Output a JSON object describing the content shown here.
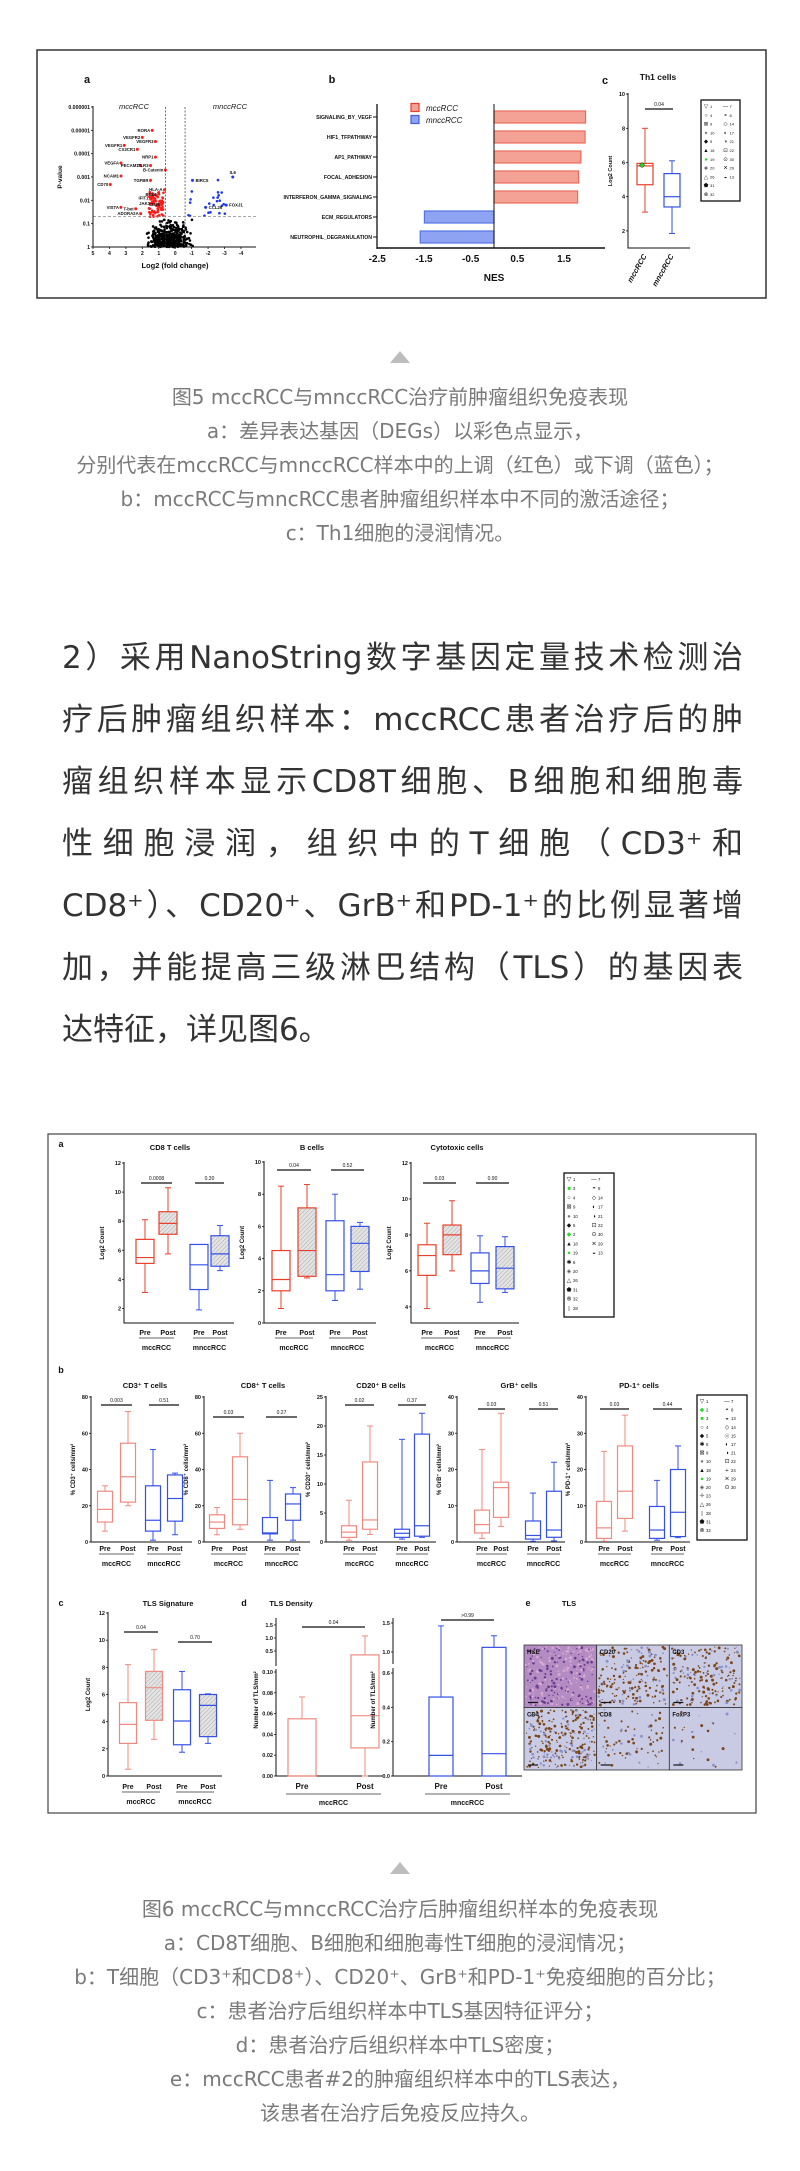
{
  "article": {
    "paragraph_lines": [
      "2）采用NanoString数字基因定量技术检测治",
      "疗后肿瘤组织样本：mccRCC患者治疗后的肿",
      "瘤组织样本显示CD8T细胞、B细胞和细胞毒",
      "性细胞浸润，组织中的T细胞（CD3⁺和",
      "CD8⁺）、CD20⁺、GrB⁺和PD-1⁺的比例显著增",
      "加，并能提高三级淋巴结构（TLS）的基因表",
      "达特征，详见图6。"
    ]
  },
  "colors": {
    "red": "#e8402a",
    "red_light": "#f08a80",
    "blue": "#3450e6",
    "green": "#22dd22",
    "up": "#ff1a1a",
    "down": "#1f35f0",
    "caption": "#7a7a7a"
  },
  "markers": {
    "1": "triangle-down-open",
    "2": "diamond-green",
    "3": "square-green",
    "4": "circle-open",
    "5": "diamond-black",
    "6": "star",
    "7": "dash",
    "8": "circle-top-half",
    "9": "square-x",
    "10": "circle-gray",
    "13": "circle-bottom-half",
    "14": "diamond-open",
    "15": "circle-double",
    "17": "circle-left-half",
    "18": "triangle-black",
    "19": "circle-green",
    "20": "diamond-gray",
    "21": "circle-right-half",
    "22": "square-dot",
    "23": "cross",
    "24": "plus",
    "26": "triangle-open",
    "28": "bar",
    "29": "x",
    "30": "circle-dot",
    "31": "pentagon",
    "32": "circle-x"
  },
  "figure5": {
    "caption": [
      "图5   mccRCC与mnccRCC治疗前肿瘤组织免疫表现",
      "a：差异表达基因（DEGs）以彩色点显示，",
      "分别代表在mccRCC与mnccRCC样本中的上调（红色）或下调（蓝色）；",
      "b：mccRCC与mncRCC患者肿瘤组织样本中不同的激活途径；",
      "c：Th1细胞的浸润情况。"
    ],
    "panel_a": {
      "label": "a",
      "group_left": "mccRCC",
      "group_right": "mnccRCC",
      "ylabel": "P-value",
      "xlabel": "Log2 (fold change)",
      "xticks": [
        "5",
        "4",
        "3",
        "2",
        "1",
        "0",
        "-1",
        "-2",
        "-3",
        "-4"
      ],
      "yticks": [
        "0.000001",
        "0.00001",
        "0.0001",
        "0.001",
        "0.01",
        "0.1",
        "1"
      ],
      "fold_change_threshold": 0.6,
      "p_threshold": 0.05,
      "genes": [
        {
          "name": "RORA",
          "log2fc": 1.4,
          "p": 1e-05,
          "direction": "up"
        },
        {
          "name": "VEGFR2",
          "log2fc": 2.0,
          "p": 2e-05,
          "direction": "up"
        },
        {
          "name": "VEGFR1",
          "log2fc": 3.1,
          "p": 4.4e-05,
          "direction": "up"
        },
        {
          "name": "VEGFR3",
          "log2fc": 1.2,
          "p": 3e-05,
          "direction": "up"
        },
        {
          "name": "CX3CR1",
          "log2fc": 2.3,
          "p": 6.5e-05,
          "direction": "up"
        },
        {
          "name": "NRP1",
          "log2fc": 1.2,
          "p": 0.00014,
          "direction": "up"
        },
        {
          "name": "VEGFA",
          "log2fc": 3.3,
          "p": 0.00025,
          "direction": "up"
        },
        {
          "name": "PECAM1",
          "log2fc": 2.1,
          "p": 0.00032,
          "direction": "up"
        },
        {
          "name": "TLR3",
          "log2fc": 1.5,
          "p": 0.00032,
          "direction": "up"
        },
        {
          "name": "B-Catenin",
          "log2fc": 0.6,
          "p": 0.0005,
          "direction": "up"
        },
        {
          "name": "NCAM1",
          "log2fc": 3.3,
          "p": 0.0009,
          "direction": "up"
        },
        {
          "name": "CD70",
          "log2fc": 3.95,
          "p": 0.0021,
          "direction": "up"
        },
        {
          "name": "TGFBR",
          "log2fc": 1.5,
          "p": 0.0014,
          "direction": "up"
        },
        {
          "name": "HLA-A",
          "log2fc": 0.65,
          "p": 0.0035,
          "direction": "up"
        },
        {
          "name": "BCL6",
          "log2fc": 1.0,
          "p": 0.0055,
          "direction": "up"
        },
        {
          "name": "IFIT1",
          "log2fc": 1.5,
          "p": 0.008,
          "direction": "up"
        },
        {
          "name": "VISTA",
          "log2fc": 3.3,
          "p": 0.02,
          "direction": "up"
        },
        {
          "name": "T-bet",
          "log2fc": 2.4,
          "p": 0.023,
          "direction": "up"
        },
        {
          "name": "JAK1",
          "log2fc": 1.4,
          "p": 0.014,
          "direction": "up"
        },
        {
          "name": "CD69",
          "log2fc": 0.8,
          "p": 0.015,
          "direction": "up"
        },
        {
          "name": "ADORA2A",
          "log2fc": 2.1,
          "p": 0.037,
          "direction": "up"
        },
        {
          "name": "IL6",
          "log2fc": -3.5,
          "p": 0.001,
          "direction": "down"
        },
        {
          "name": "BIRC5",
          "log2fc": -1.05,
          "p": 0.0014,
          "direction": "down"
        },
        {
          "name": "FOXJ1",
          "log2fc": -3.1,
          "p": 0.016,
          "direction": "down"
        },
        {
          "name": "CCL26",
          "log2fc": -1.85,
          "p": 0.02,
          "direction": "down"
        }
      ]
    },
    "panel_b": {
      "label": "b",
      "xlabel": "NES",
      "xticks": [
        "-2.5",
        "-1.5",
        "-0.5",
        "0.5",
        "1.5"
      ],
      "xlim": [
        -2.5,
        2.4
      ],
      "legend": [
        {
          "name": "mccRCC",
          "color": "red"
        },
        {
          "name": "mnccRCC",
          "color": "blue"
        }
      ],
      "pathways": [
        {
          "name": "SIGNALING_BY_VEGF",
          "nes": 1.96,
          "group": "mccRCC"
        },
        {
          "name": "HIF1_TFPATHWAY",
          "nes": 1.95,
          "group": "mccRCC"
        },
        {
          "name": "AP1_PATHWAY",
          "nes": 1.86,
          "group": "mccRCC"
        },
        {
          "name": "FOCAL_ADHESION",
          "nes": 1.81,
          "group": "mccRCC"
        },
        {
          "name": "INTERFERON_GAMMA_SIGNALING",
          "nes": 1.79,
          "group": "mccRCC"
        },
        {
          "name": "ECM_REGULATORS",
          "nes": -1.49,
          "group": "mnccRCC"
        },
        {
          "name": "NEUTROPHIL_DEGRANULATION",
          "nes": -1.58,
          "group": "mnccRCC"
        }
      ]
    },
    "panel_c": {
      "label": "c",
      "title": "Th1 cells",
      "ylabel": "Log2 Count",
      "ylim": [
        1,
        10
      ],
      "yticks": [
        "2",
        "4",
        "6",
        "8",
        "10"
      ],
      "boxes": [
        {
          "name": "mccRCC",
          "stats": [
            3.1,
            4.7,
            5.8,
            5.95,
            8.0
          ],
          "color": "red"
        },
        {
          "name": "mnccRCC",
          "stats": [
            1.85,
            3.4,
            4.0,
            5.35,
            6.1
          ],
          "color": "blue"
        }
      ],
      "p_value": "0.04",
      "legend": [
        [
          "1",
          "4",
          "9",
          "10",
          "5",
          "18",
          "19",
          "20",
          "26",
          "31",
          "32"
        ],
        [
          "7",
          "8",
          "14",
          "17",
          "21",
          "22",
          "30",
          "29",
          "13"
        ]
      ]
    }
  },
  "figure6": {
    "caption": [
      "图6  mccRCC与mnccRCC治疗后肿瘤组织样本的免疫表现",
      "a：CD8T细胞、B细胞和细胞毒性T细胞的浸润情况；",
      "b：T细胞（CD3⁺和CD8⁺）、CD20⁺、GrB⁺和PD-1⁺免疫细胞的百分比；",
      "c：患者治疗后组织样本中TLS基因特征评分；",
      "d：患者治疗后组织样本中TLS密度；",
      "e：mccRCC患者#2的肿瘤组织样本中的TLS表达，",
      "该患者在治疗后免疫反应持久。"
    ],
    "time_labels": [
      "Pre",
      "Post"
    ],
    "groups": [
      "mccRCC",
      "mnccRCC"
    ],
    "panel_a": {
      "label": "a",
      "legend": [
        [
          "1",
          "3",
          "4",
          "9",
          "10",
          "5",
          "2",
          "18",
          "19",
          "6",
          "20",
          "26",
          "31",
          "32",
          "28"
        ],
        [
          "7",
          "8",
          "14",
          "17",
          "21",
          "22",
          "30",
          "29",
          "13"
        ]
      ],
      "plots": [
        {
          "title": "CD8 T cells",
          "ylabel": "Log2 Count",
          "ylim": [
            1,
            12
          ],
          "yticks": [
            "2",
            "4",
            "6",
            "8",
            "10",
            "12"
          ],
          "boxes": [
            [
              3.1,
              5.1,
              5.5,
              6.75,
              8.1
            ],
            [
              5.75,
              7.1,
              7.85,
              8.65,
              10.3
            ],
            [
              1.9,
              3.3,
              5.0,
              6.4,
              6.4
            ],
            [
              4.6,
              4.9,
              5.75,
              7.0,
              7.7
            ]
          ],
          "p_values": [
            "0.0008",
            "0.30"
          ]
        },
        {
          "title": "B cells",
          "ylabel": "Log2 Count",
          "ylim": [
            0,
            10
          ],
          "yticks": [
            "0",
            "2",
            "4",
            "6",
            "8",
            "10"
          ],
          "boxes": [
            [
              0.9,
              2.0,
              2.7,
              4.5,
              8.5
            ],
            [
              2.8,
              2.9,
              4.5,
              7.15,
              8.6
            ],
            [
              1.4,
              2.0,
              3.0,
              6.35,
              8.0
            ],
            [
              2.1,
              3.2,
              4.95,
              6.0,
              6.25
            ]
          ],
          "p_values": [
            "0.04",
            "0.52"
          ]
        },
        {
          "title": "Cytotoxic cells",
          "ylabel": "Log2 Count",
          "ylim": [
            3.1,
            12
          ],
          "yticks": [
            "4",
            "6",
            "8",
            "10",
            "12"
          ],
          "boxes": [
            [
              3.9,
              5.75,
              6.85,
              7.45,
              8.65
            ],
            [
              6.0,
              6.9,
              8.0,
              8.55,
              9.9
            ],
            [
              4.25,
              5.3,
              6.0,
              7.0,
              7.95
            ],
            [
              4.8,
              5.0,
              6.15,
              7.35,
              7.9
            ]
          ],
          "p_values": [
            "0.03",
            "0.90"
          ]
        }
      ]
    },
    "panel_b": {
      "label": "b",
      "legend": [
        [
          "1",
          "2",
          "3",
          "4",
          "5",
          "6",
          "9",
          "10",
          "18",
          "19",
          "20",
          "23",
          "26",
          "28",
          "31",
          "32"
        ],
        [
          "7",
          "8",
          "13",
          "14",
          "15",
          "17",
          "21",
          "22",
          "24",
          "29",
          "30"
        ]
      ],
      "plots": [
        {
          "title": "CD3⁺ T cells",
          "ylabel": "% CD3⁺ cells/mm²",
          "ylim": [
            0,
            80
          ],
          "yticks": [
            "0",
            "20",
            "40",
            "60",
            "80"
          ],
          "boxes": [
            [
              6,
              11,
              18,
              28,
              31
            ],
            [
              20,
              22,
              36,
              54.5,
              72
            ],
            [
              1,
              6,
              12,
              31,
              51
            ],
            [
              4,
              11.5,
              24,
              37,
              38
            ]
          ],
          "p_values": [
            "0.003",
            "0.51"
          ]
        },
        {
          "title": "CD8⁺ T cells",
          "ylabel": "% CD8⁺ cells/mm²",
          "ylim": [
            0,
            80
          ],
          "yticks": [
            "0",
            "20",
            "40",
            "60",
            "80"
          ],
          "boxes": [
            [
              4,
              7.5,
              11,
              15,
              19
            ],
            [
              7,
              9.5,
              23.5,
              47,
              60
            ],
            [
              1,
              4.5,
              5,
              13.5,
              34
            ],
            [
              1,
              12,
              21,
              26.5,
              30
            ]
          ],
          "p_values": [
            "0.03",
            "0.27"
          ]
        },
        {
          "title": "CD20⁺ B cells",
          "ylabel": "% CD20⁺ cells/mm²",
          "ylim": [
            0,
            25
          ],
          "yticks": [
            "0",
            "5",
            "10",
            "15",
            "20",
            "25"
          ],
          "boxes": [
            [
              0.3,
              0.8,
              1.7,
              2.8,
              7.2
            ],
            [
              1.3,
              2.2,
              3.8,
              13.8,
              20
            ],
            [
              0.5,
              0.8,
              1.5,
              2.2,
              17.7
            ],
            [
              0.8,
              1.0,
              2.8,
              18.6,
              22.2
            ]
          ],
          "p_values": [
            "0.02",
            "0.37"
          ]
        },
        {
          "title": "GrB⁺ cells",
          "ylabel": "% GrB⁺ cells/mm²",
          "ylim": [
            0,
            40
          ],
          "yticks": [
            "0",
            "10",
            "20",
            "30",
            "40"
          ],
          "boxes": [
            [
              1,
              2.5,
              4.8,
              8.8,
              25.5
            ],
            [
              4.3,
              6.8,
              15,
              16.5,
              35.5
            ],
            [
              0.2,
              0.8,
              1.8,
              5.8,
              13.5
            ],
            [
              0.3,
              1.3,
              3.3,
              14,
              22
            ]
          ],
          "p_values": [
            "0.03",
            "0.51"
          ]
        },
        {
          "title": "PD-1⁺ cells",
          "ylabel": "% PD-1⁺ cells/mm²",
          "ylim": [
            0,
            40
          ],
          "yticks": [
            "0",
            "10",
            "20",
            "30",
            "40"
          ],
          "boxes": [
            [
              0.2,
              1,
              3.9,
              11.2,
              25
            ],
            [
              3,
              6.5,
              14,
              26.5,
              35
            ],
            [
              0.5,
              1,
              3.3,
              9.8,
              17
            ],
            [
              1.2,
              1.5,
              8.2,
              20,
              26.5
            ]
          ],
          "p_values": [
            "0.03",
            "0.44"
          ]
        }
      ]
    },
    "panel_c": {
      "label": "c",
      "title": "TLS Signature",
      "ylabel": "Log2 Count",
      "ylim": [
        0,
        12
      ],
      "yticks": [
        "0",
        "2",
        "4",
        "6",
        "8",
        "10",
        "12"
      ],
      "boxes": [
        [
          0.5,
          2.4,
          3.8,
          5.4,
          8.2
        ],
        [
          2.7,
          4.1,
          6.5,
          7.7,
          9.3
        ],
        [
          1.75,
          2.3,
          4.05,
          6.35,
          7.7
        ],
        [
          2.4,
          2.9,
          5.2,
          6.0,
          6.05
        ]
      ],
      "p_values": [
        "0.04",
        "0.70"
      ]
    },
    "panel_d": {
      "label": "d",
      "title": "TLS Density",
      "ylabel": "Number of TLS/mm²",
      "plots": [
        {
          "group": "mccRCC",
          "yticks_lower": [
            "0.00",
            "0.02",
            "0.04",
            "0.06",
            "0.08",
            "0.10"
          ],
          "yticks_upper": [
            "0.5",
            "1.0",
            "1.5"
          ],
          "boxes": [
            [
              0,
              0,
              0,
              0.055,
              0.076
            ],
            [
              0,
              0.027,
              0.058,
              0.35,
              1.08
            ]
          ],
          "p_value": "0.04",
          "color": "red"
        },
        {
          "group": "mnccRCC",
          "yticks_lower": [
            "0.0",
            "0.2",
            "0.4",
            "0.6"
          ],
          "yticks_upper": [
            "1.0",
            "1.5"
          ],
          "boxes": [
            [
              0,
              0,
              0.12,
              0.46,
              1.45
            ],
            [
              0,
              0,
              0.13,
              1.08,
              1.28
            ]
          ],
          "p_value": ">0.99",
          "color": "blue"
        }
      ]
    },
    "panel_e": {
      "label": "e",
      "title": "TLS",
      "tiles": [
        {
          "name": "H&E",
          "stain": "he"
        },
        {
          "name": "CD20",
          "stain": "dab-high"
        },
        {
          "name": "CD3",
          "stain": "dab-high"
        },
        {
          "name": "CD4",
          "stain": "dab-max"
        },
        {
          "name": "CD8",
          "stain": "dab-low"
        },
        {
          "name": "FoxP3",
          "stain": "dab-min"
        }
      ]
    }
  }
}
